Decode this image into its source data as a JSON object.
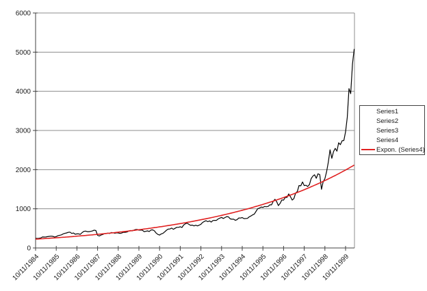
{
  "chart_data": {
    "type": "line",
    "title": "",
    "background": "#ffffff",
    "y_axis": {
      "min": 0,
      "max": 6000,
      "tick_interval": 1000,
      "tick_labels": [
        "0",
        "1000",
        "2000",
        "3000",
        "4000",
        "5000",
        "6000"
      ],
      "grid": true
    },
    "x_axis": {
      "tick_labels": [
        "10/11/1984",
        "10/11/1985",
        "10/11/1986",
        "10/11/1987",
        "10/11/1988",
        "10/11/1989",
        "10/11/1990",
        "10/11/1991",
        "10/11/1992",
        "10/11/1993",
        "10/11/1994",
        "10/11/1995",
        "10/11/1996",
        "10/11/1997",
        "10/11/1998",
        "10/11/1999"
      ],
      "label_rotation_deg": -45
    },
    "legend": {
      "position": "right",
      "entries": [
        {
          "label": "Series1",
          "line_color": null
        },
        {
          "label": "Series2",
          "line_color": null
        },
        {
          "label": "Series3",
          "line_color": null
        },
        {
          "label": "Series4",
          "line_color": null
        },
        {
          "label": "Expon. (Series4)",
          "line_color": "#e02020"
        }
      ]
    },
    "series": [
      {
        "name": "Series1",
        "color": null,
        "values": []
      },
      {
        "name": "Series2",
        "color": null,
        "values": []
      },
      {
        "name": "Series3",
        "color": null,
        "values": []
      },
      {
        "name": "Series4",
        "color": "#000000",
        "x_start": "10/11/1984",
        "x_step": "monthly",
        "values": [
          247,
          242,
          247,
          255,
          281,
          279,
          280,
          290,
          296,
          301,
          297,
          280,
          292,
          313,
          325,
          335,
          359,
          374,
          383,
          400,
          405,
          371,
          382,
          350,
          360,
          360,
          349,
          392,
          424,
          430,
          417,
          416,
          424,
          434,
          455,
          444,
          323,
          305,
          330,
          344,
          366,
          374,
          379,
          370,
          394,
          387,
          376,
          387,
          383,
          371,
          381,
          401,
          400,
          407,
          428,
          446,
          435,
          454,
          469,
          473,
          456,
          456,
          455,
          416,
          426,
          436,
          420,
          459,
          462,
          438,
          381,
          345,
          329,
          359,
          374,
          414,
          453,
          482,
          485,
          507,
          476,
          502,
          526,
          527,
          543,
          523,
          586,
          620,
          633,
          604,
          578,
          585,
          564,
          580,
          563,
          583,
          605,
          652,
          677,
          696,
          671,
          690,
          661,
          701,
          704,
          704,
          742,
          763,
          779,
          754,
          777,
          800,
          793,
          743,
          734,
          735,
          706,
          722,
          766,
          764,
          777,
          750,
          752,
          755,
          794,
          817,
          844,
          865,
          933,
          1001,
          1020,
          1044,
          1036,
          1059,
          1052,
          1060,
          1100,
          1101,
          1191,
          1243,
          1185,
          1081,
          1141,
          1227,
          1221,
          1292,
          1291,
          1380,
          1309,
          1222,
          1261,
          1400,
          1442,
          1594,
          1587,
          1685,
          1593,
          1601,
          1570,
          1619,
          1771,
          1835,
          1868,
          1779,
          1895,
          1872,
          1499,
          1694,
          1771,
          1950,
          2193,
          2506,
          2288,
          2461,
          2543,
          2471,
          2686,
          2638,
          2739,
          2746,
          2966,
          3336,
          4069,
          3940,
          4697,
          5080
        ]
      }
    ],
    "trendline": {
      "label": "Expon. (Series4)",
      "of_series": "Series4",
      "fit": "exponential",
      "color": "#e02020",
      "start_value": 225,
      "end_value": 2115
    },
    "colors": {
      "gridline": "#8c8c8c",
      "plot_border": "#8c8c8c",
      "axis": "#404040",
      "tick": "#404040",
      "series4_line": "#000000",
      "trendline": "#e02020"
    }
  }
}
